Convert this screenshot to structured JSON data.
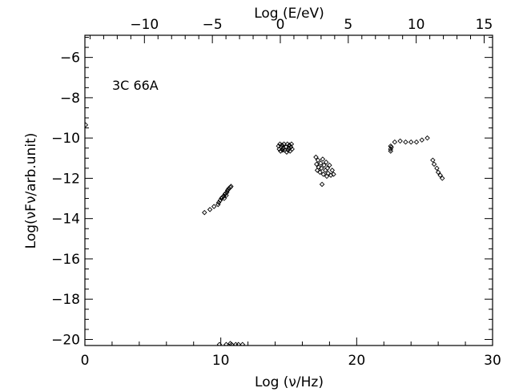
{
  "chart_data": {
    "type": "scatter",
    "title": "",
    "annotation": "3C 66A",
    "xlabel": "Log (ν/Hz)",
    "ylabel": "Log(νFν/arb.unit)",
    "top_xlabel": "Log (E/eV)",
    "xlim": [
      0,
      30
    ],
    "ylim": [
      -20.3,
      -4.9
    ],
    "top_xlim": [
      -14.38,
      15.62
    ],
    "x_ticks": [
      0,
      10,
      20,
      30
    ],
    "y_ticks": [
      -20,
      -18,
      -16,
      -14,
      -12,
      -10,
      -8,
      -6
    ],
    "top_x_ticks": [
      -10,
      -5,
      0,
      5,
      10,
      15
    ],
    "grid": false,
    "marker": "open-diamond",
    "color": "#000000",
    "series": [
      {
        "values": [
          [
            0.05,
            -9.35
          ],
          [
            8.8,
            -13.7
          ],
          [
            9.2,
            -13.55
          ],
          [
            9.5,
            -13.4
          ],
          [
            9.8,
            -13.3
          ],
          [
            9.85,
            -13.2
          ],
          [
            9.95,
            -13.1
          ],
          [
            10.05,
            -13.0
          ],
          [
            10.1,
            -12.95
          ],
          [
            10.2,
            -12.9
          ],
          [
            10.3,
            -12.8
          ],
          [
            10.35,
            -12.75
          ],
          [
            10.45,
            -12.7
          ],
          [
            10.5,
            -12.6
          ],
          [
            10.55,
            -12.55
          ],
          [
            10.7,
            -12.45
          ],
          [
            10.75,
            -12.4
          ],
          [
            10.25,
            -13.0
          ],
          [
            10.4,
            -12.85
          ],
          [
            10.6,
            -12.5
          ],
          [
            14.25,
            -10.4
          ],
          [
            14.3,
            -10.55
          ],
          [
            14.35,
            -10.3
          ],
          [
            14.4,
            -10.65
          ],
          [
            14.45,
            -10.45
          ],
          [
            14.5,
            -10.35
          ],
          [
            14.55,
            -10.6
          ],
          [
            14.6,
            -10.5
          ],
          [
            14.65,
            -10.3
          ],
          [
            14.7,
            -10.6
          ],
          [
            14.8,
            -10.45
          ],
          [
            14.9,
            -10.3
          ],
          [
            14.95,
            -10.6
          ],
          [
            15.0,
            -10.5
          ],
          [
            15.05,
            -10.35
          ],
          [
            15.1,
            -10.65
          ],
          [
            15.15,
            -10.45
          ],
          [
            15.2,
            -10.3
          ],
          [
            15.25,
            -10.55
          ],
          [
            14.85,
            -10.7
          ],
          [
            17.0,
            -10.95
          ],
          [
            17.05,
            -11.3
          ],
          [
            17.1,
            -11.6
          ],
          [
            17.15,
            -11.1
          ],
          [
            17.2,
            -11.45
          ],
          [
            17.3,
            -11.7
          ],
          [
            17.35,
            -11.25
          ],
          [
            17.4,
            -11.5
          ],
          [
            17.45,
            -12.3
          ],
          [
            17.5,
            -11.05
          ],
          [
            17.55,
            -11.8
          ],
          [
            17.6,
            -11.35
          ],
          [
            17.7,
            -11.6
          ],
          [
            17.75,
            -11.2
          ],
          [
            17.8,
            -11.9
          ],
          [
            17.85,
            -11.5
          ],
          [
            17.9,
            -11.75
          ],
          [
            18.0,
            -11.35
          ],
          [
            18.1,
            -11.85
          ],
          [
            18.2,
            -11.6
          ],
          [
            18.3,
            -11.8
          ],
          [
            22.5,
            -10.4
          ],
          [
            22.5,
            -10.55
          ],
          [
            22.5,
            -10.65
          ],
          [
            22.55,
            -10.45
          ],
          [
            22.8,
            -10.2
          ],
          [
            23.2,
            -10.15
          ],
          [
            23.6,
            -10.2
          ],
          [
            24.0,
            -10.2
          ],
          [
            24.4,
            -10.2
          ],
          [
            24.8,
            -10.1
          ],
          [
            25.2,
            -10.0
          ],
          [
            25.6,
            -11.1
          ],
          [
            25.7,
            -11.3
          ],
          [
            25.9,
            -11.5
          ],
          [
            26.0,
            -11.7
          ],
          [
            26.15,
            -11.85
          ],
          [
            26.3,
            -12.0
          ],
          [
            9.9,
            -20.25
          ],
          [
            10.4,
            -20.25
          ],
          [
            10.7,
            -20.2
          ],
          [
            10.8,
            -20.25
          ],
          [
            11.1,
            -20.25
          ],
          [
            11.3,
            -20.25
          ],
          [
            11.6,
            -20.25
          ]
        ]
      }
    ]
  }
}
